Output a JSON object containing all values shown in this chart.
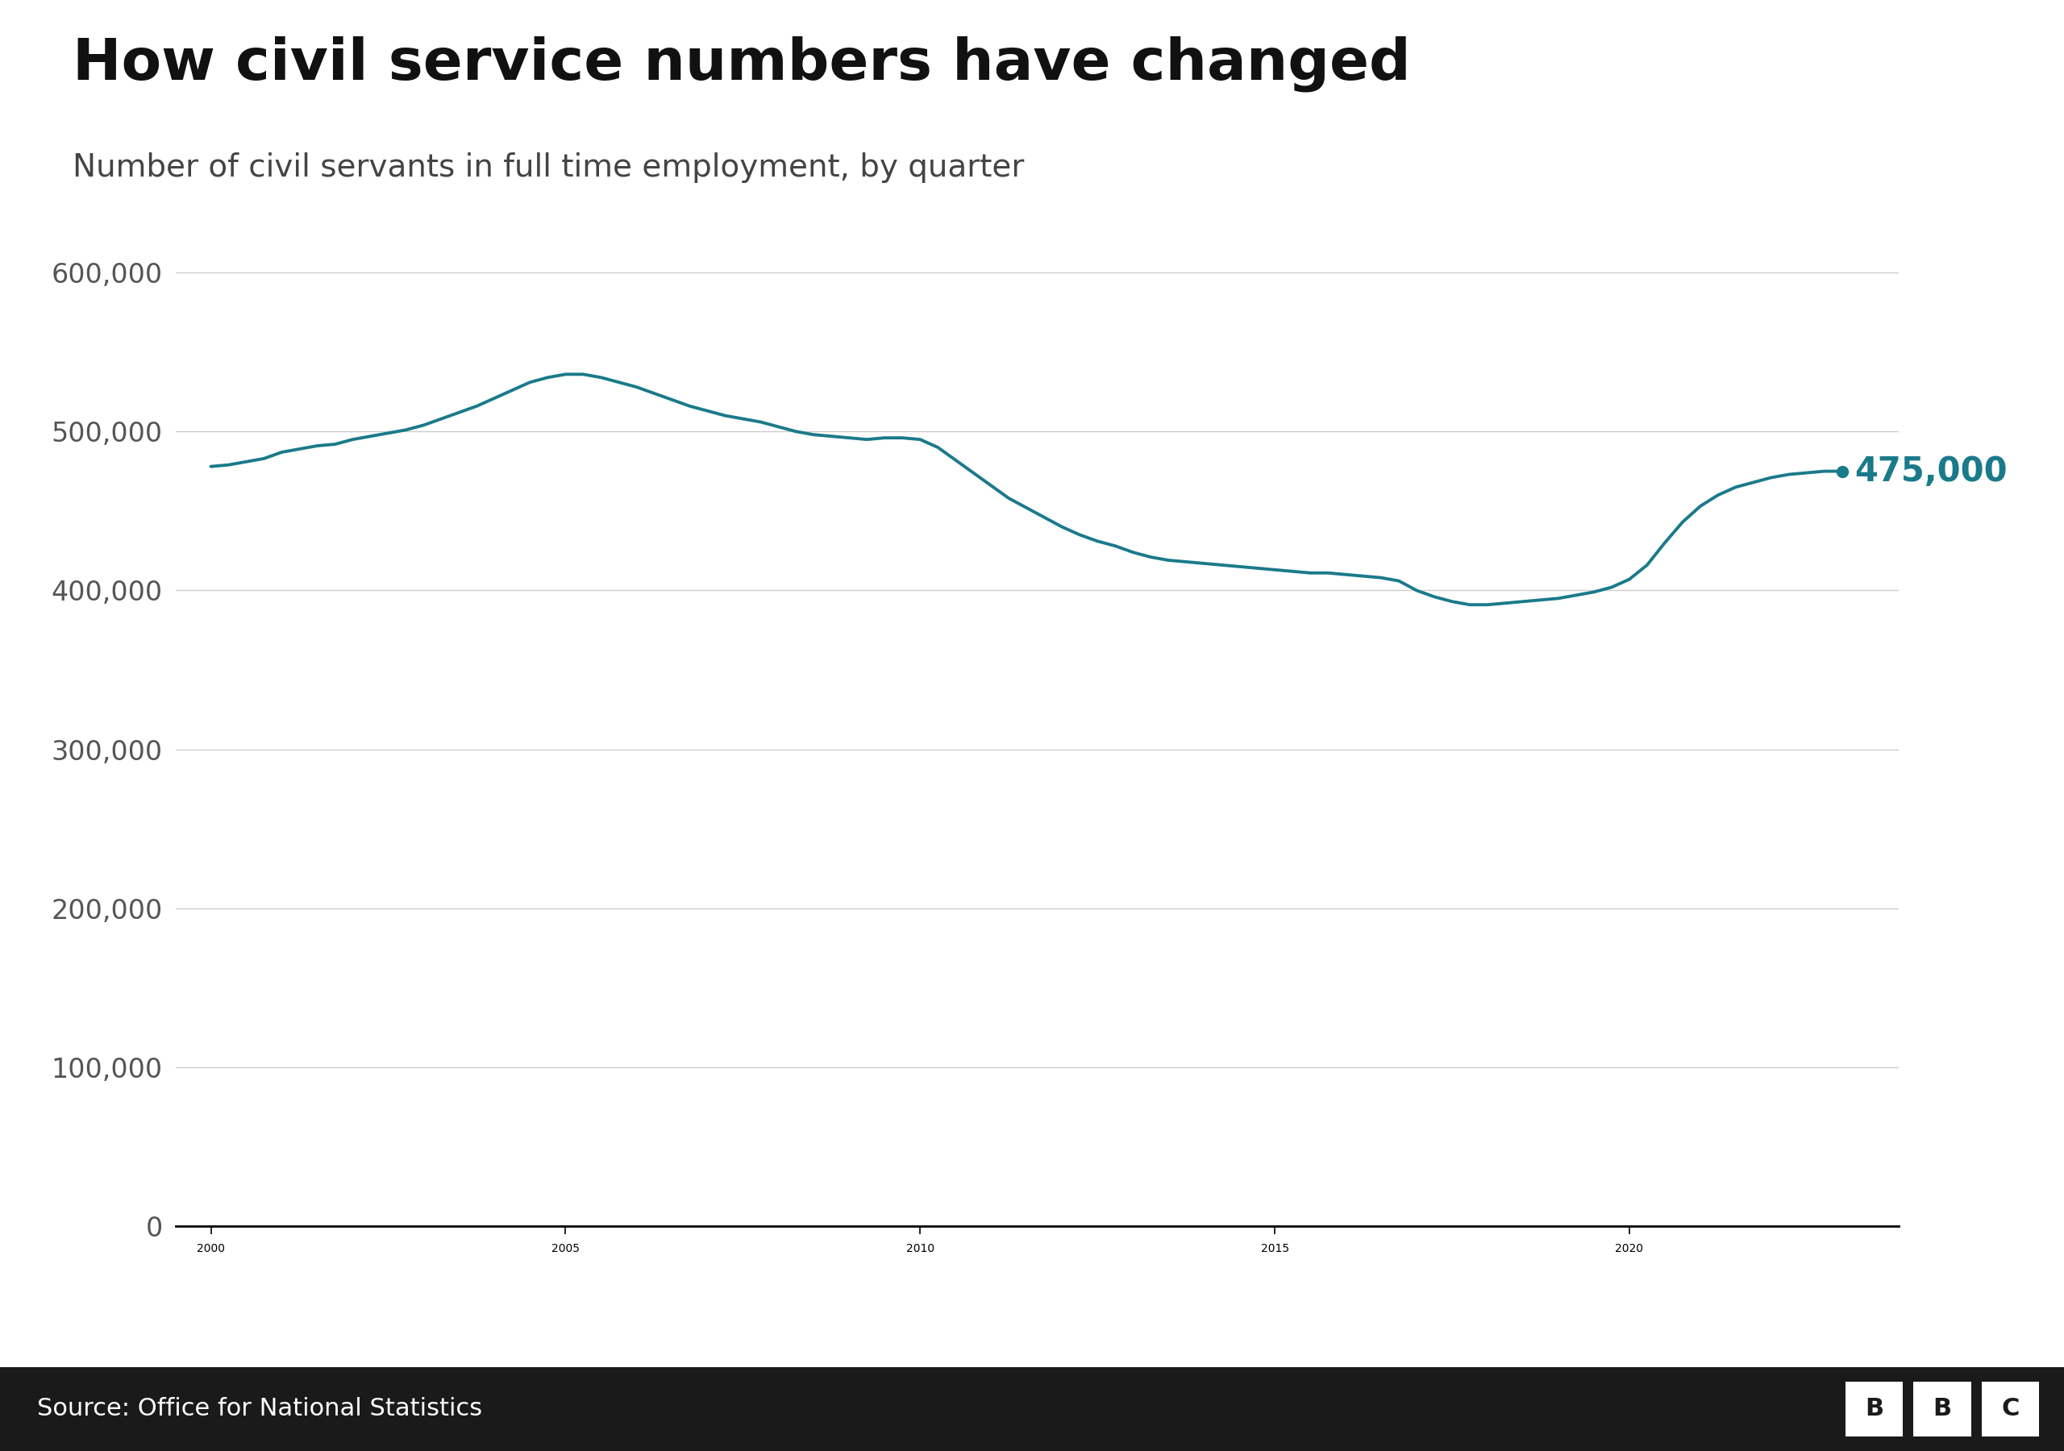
{
  "title": "How civil service numbers have changed",
  "subtitle": "Number of civil servants in full time employment, by quarter",
  "source": "Source: Office for National Statistics",
  "line_color": "#1a7a8a",
  "background_color": "#ffffff",
  "footer_bg_color": "#1a1a1a",
  "annotation_value": "475,000",
  "annotation_color": "#1a7a8a",
  "xlim": [
    1999.5,
    2023.8
  ],
  "ylim": [
    0,
    630000
  ],
  "yticks": [
    0,
    100000,
    200000,
    300000,
    400000,
    500000,
    600000
  ],
  "xticks": [
    2000,
    2005,
    2010,
    2015,
    2020
  ],
  "data": [
    [
      2000.0,
      478000
    ],
    [
      2000.25,
      479000
    ],
    [
      2000.5,
      481000
    ],
    [
      2000.75,
      483000
    ],
    [
      2001.0,
      487000
    ],
    [
      2001.25,
      489000
    ],
    [
      2001.5,
      491000
    ],
    [
      2001.75,
      492000
    ],
    [
      2002.0,
      495000
    ],
    [
      2002.25,
      497000
    ],
    [
      2002.5,
      499000
    ],
    [
      2002.75,
      501000
    ],
    [
      2003.0,
      504000
    ],
    [
      2003.25,
      508000
    ],
    [
      2003.5,
      512000
    ],
    [
      2003.75,
      516000
    ],
    [
      2004.0,
      521000
    ],
    [
      2004.25,
      526000
    ],
    [
      2004.5,
      531000
    ],
    [
      2004.75,
      534000
    ],
    [
      2005.0,
      536000
    ],
    [
      2005.25,
      536000
    ],
    [
      2005.5,
      534000
    ],
    [
      2005.75,
      531000
    ],
    [
      2006.0,
      528000
    ],
    [
      2006.25,
      524000
    ],
    [
      2006.5,
      520000
    ],
    [
      2006.75,
      516000
    ],
    [
      2007.0,
      513000
    ],
    [
      2007.25,
      510000
    ],
    [
      2007.5,
      508000
    ],
    [
      2007.75,
      506000
    ],
    [
      2008.0,
      503000
    ],
    [
      2008.25,
      500000
    ],
    [
      2008.5,
      498000
    ],
    [
      2008.75,
      497000
    ],
    [
      2009.0,
      496000
    ],
    [
      2009.25,
      495000
    ],
    [
      2009.5,
      496000
    ],
    [
      2009.75,
      496000
    ],
    [
      2010.0,
      495000
    ],
    [
      2010.25,
      490000
    ],
    [
      2010.5,
      482000
    ],
    [
      2010.75,
      474000
    ],
    [
      2011.0,
      466000
    ],
    [
      2011.25,
      458000
    ],
    [
      2011.5,
      452000
    ],
    [
      2011.75,
      446000
    ],
    [
      2012.0,
      440000
    ],
    [
      2012.25,
      435000
    ],
    [
      2012.5,
      431000
    ],
    [
      2012.75,
      428000
    ],
    [
      2013.0,
      424000
    ],
    [
      2013.25,
      421000
    ],
    [
      2013.5,
      419000
    ],
    [
      2013.75,
      418000
    ],
    [
      2014.0,
      417000
    ],
    [
      2014.25,
      416000
    ],
    [
      2014.5,
      415000
    ],
    [
      2014.75,
      414000
    ],
    [
      2015.0,
      413000
    ],
    [
      2015.25,
      412000
    ],
    [
      2015.5,
      411000
    ],
    [
      2015.75,
      411000
    ],
    [
      2016.0,
      410000
    ],
    [
      2016.25,
      409000
    ],
    [
      2016.5,
      408000
    ],
    [
      2016.75,
      406000
    ],
    [
      2017.0,
      400000
    ],
    [
      2017.25,
      396000
    ],
    [
      2017.5,
      393000
    ],
    [
      2017.75,
      391000
    ],
    [
      2018.0,
      391000
    ],
    [
      2018.25,
      392000
    ],
    [
      2018.5,
      393000
    ],
    [
      2018.75,
      394000
    ],
    [
      2019.0,
      395000
    ],
    [
      2019.25,
      397000
    ],
    [
      2019.5,
      399000
    ],
    [
      2019.75,
      402000
    ],
    [
      2020.0,
      407000
    ],
    [
      2020.25,
      416000
    ],
    [
      2020.5,
      430000
    ],
    [
      2020.75,
      443000
    ],
    [
      2021.0,
      453000
    ],
    [
      2021.25,
      460000
    ],
    [
      2021.5,
      465000
    ],
    [
      2021.75,
      468000
    ],
    [
      2022.0,
      471000
    ],
    [
      2022.25,
      473000
    ],
    [
      2022.5,
      474000
    ],
    [
      2022.75,
      475000
    ],
    [
      2023.0,
      475000
    ]
  ]
}
